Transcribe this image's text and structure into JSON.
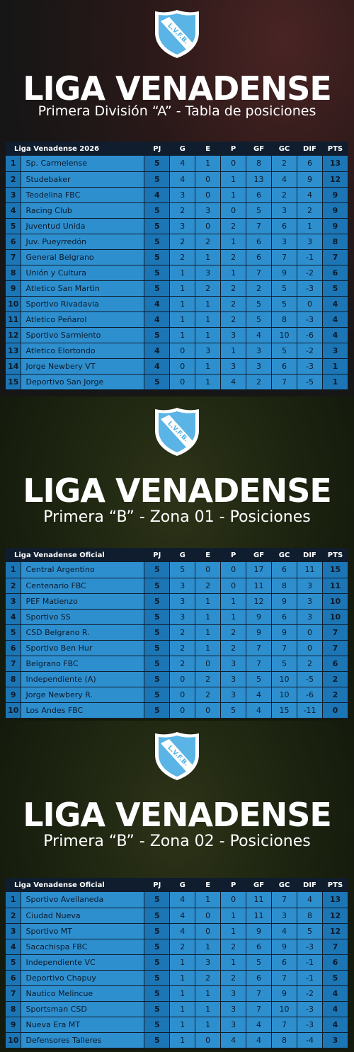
{
  "colors": {
    "table_header": "#0f1d2e",
    "row_bg": "#2e8fcf",
    "accent_col": "#1c76b5",
    "logo_blue": "#5ab4e5"
  },
  "logo": {
    "text": "L.V.F.B."
  },
  "columns": [
    "PJ",
    "G",
    "E",
    "P",
    "GF",
    "GC",
    "DIF",
    "PTS"
  ],
  "panels": [
    {
      "title": "LIGA VENADENSE",
      "subtitle": "Primera División “A” - Tabla de posiciones",
      "league_label": "Liga Venadense 2026",
      "rows": [
        [
          "1",
          "Sp. Carmelense",
          "5",
          "4",
          "1",
          "0",
          "8",
          "2",
          "6",
          "13"
        ],
        [
          "2",
          "Studebaker",
          "5",
          "4",
          "0",
          "1",
          "13",
          "4",
          "9",
          "12"
        ],
        [
          "3",
          "Teodelina FBC",
          "4",
          "3",
          "0",
          "1",
          "6",
          "2",
          "4",
          "9"
        ],
        [
          "4",
          "Racing Club",
          "5",
          "2",
          "3",
          "0",
          "5",
          "3",
          "2",
          "9"
        ],
        [
          "5",
          "Juventud Unida",
          "5",
          "3",
          "0",
          "2",
          "7",
          "6",
          "1",
          "9"
        ],
        [
          "6",
          "Juv. Pueyrredón",
          "5",
          "2",
          "2",
          "1",
          "6",
          "3",
          "3",
          "8"
        ],
        [
          "7",
          "General Belgrano",
          "5",
          "2",
          "1",
          "2",
          "6",
          "7",
          "-1",
          "7"
        ],
        [
          "8",
          "Unión y Cultura",
          "5",
          "1",
          "3",
          "1",
          "7",
          "9",
          "-2",
          "6"
        ],
        [
          "9",
          "Atletico San Martin",
          "5",
          "1",
          "2",
          "2",
          "2",
          "5",
          "-3",
          "5"
        ],
        [
          "10",
          "Sportivo Rivadavia",
          "4",
          "1",
          "1",
          "2",
          "5",
          "5",
          "0",
          "4"
        ],
        [
          "11",
          "Atletico Peñarol",
          "4",
          "1",
          "1",
          "2",
          "5",
          "8",
          "-3",
          "4"
        ],
        [
          "12",
          "Sportivo Sarmiento",
          "5",
          "1",
          "1",
          "3",
          "4",
          "10",
          "-6",
          "4"
        ],
        [
          "13",
          "Atletico Elortondo",
          "4",
          "0",
          "3",
          "1",
          "3",
          "5",
          "-2",
          "3"
        ],
        [
          "14",
          "Jorge Newbery VT",
          "4",
          "0",
          "1",
          "3",
          "3",
          "6",
          "-3",
          "1"
        ],
        [
          "15",
          "Deportivo San Jorge",
          "5",
          "0",
          "1",
          "4",
          "2",
          "7",
          "-5",
          "1"
        ]
      ]
    },
    {
      "title": "LIGA VENADENSE",
      "subtitle": "Primera “B” - Zona 01 - Posiciones",
      "league_label": "Liga Venadense Oficial",
      "rows": [
        [
          "1",
          "Central Argentino",
          "5",
          "5",
          "0",
          "0",
          "17",
          "6",
          "11",
          "15"
        ],
        [
          "2",
          "Centenario FBC",
          "5",
          "3",
          "2",
          "0",
          "11",
          "8",
          "3",
          "11"
        ],
        [
          "3",
          "PEF Matienzo",
          "5",
          "3",
          "1",
          "1",
          "12",
          "9",
          "3",
          "10"
        ],
        [
          "4",
          "Sportivo SS",
          "5",
          "3",
          "1",
          "1",
          "9",
          "6",
          "3",
          "10"
        ],
        [
          "5",
          "CSD Belgrano R.",
          "5",
          "2",
          "1",
          "2",
          "9",
          "9",
          "0",
          "7"
        ],
        [
          "6",
          "Sportivo Ben Hur",
          "5",
          "2",
          "1",
          "2",
          "7",
          "7",
          "0",
          "7"
        ],
        [
          "7",
          "Belgrano FBC",
          "5",
          "2",
          "0",
          "3",
          "7",
          "5",
          "2",
          "6"
        ],
        [
          "8",
          "Independiente (A)",
          "5",
          "0",
          "2",
          "3",
          "5",
          "10",
          "-5",
          "2"
        ],
        [
          "9",
          "Jorge Newbery R.",
          "5",
          "0",
          "2",
          "3",
          "4",
          "10",
          "-6",
          "2"
        ],
        [
          "10",
          "Los Andes FBC",
          "5",
          "0",
          "0",
          "5",
          "4",
          "15",
          "-11",
          "0"
        ]
      ]
    },
    {
      "title": "LIGA VENADENSE",
      "subtitle": "Primera “B” - Zona 02 - Posiciones",
      "league_label": "Liga Venadense Oficial",
      "rows": [
        [
          "1",
          "Sportivo Avellaneda",
          "5",
          "4",
          "1",
          "0",
          "11",
          "7",
          "4",
          "13"
        ],
        [
          "2",
          "Ciudad Nueva",
          "5",
          "4",
          "0",
          "1",
          "11",
          "3",
          "8",
          "12"
        ],
        [
          "3",
          "Sportivo MT",
          "5",
          "4",
          "0",
          "1",
          "9",
          "4",
          "5",
          "12"
        ],
        [
          "4",
          "Sacachispa FBC",
          "5",
          "2",
          "1",
          "2",
          "6",
          "9",
          "-3",
          "7"
        ],
        [
          "5",
          "Independiente VC",
          "5",
          "1",
          "3",
          "1",
          "5",
          "6",
          "-1",
          "6"
        ],
        [
          "6",
          "Deportivo Chapuy",
          "5",
          "1",
          "2",
          "2",
          "6",
          "7",
          "-1",
          "5"
        ],
        [
          "7",
          "Nautico Melincue",
          "5",
          "1",
          "1",
          "3",
          "7",
          "9",
          "-2",
          "4"
        ],
        [
          "8",
          "Sportsman CSD",
          "5",
          "1",
          "1",
          "3",
          "7",
          "10",
          "-3",
          "4"
        ],
        [
          "9",
          "Nueva Era MT",
          "5",
          "1",
          "1",
          "3",
          "4",
          "7",
          "-3",
          "4"
        ],
        [
          "10",
          "Defensores Talleres",
          "5",
          "1",
          "0",
          "4",
          "4",
          "8",
          "-4",
          "3"
        ]
      ]
    }
  ]
}
